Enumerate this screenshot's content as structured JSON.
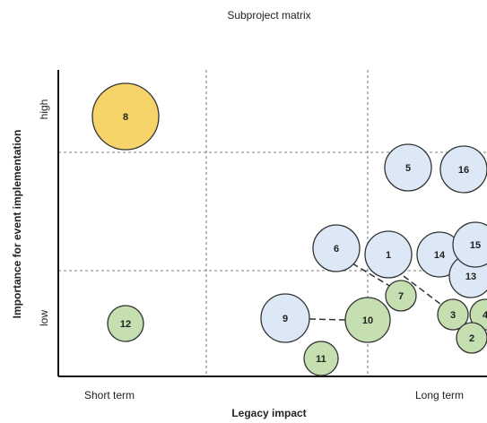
{
  "title": "Subproject matrix",
  "y_axis": {
    "label": "Importance for event implementation",
    "high": "high",
    "low": "low"
  },
  "x_axis": {
    "label": "Legacy impact",
    "short": "Short term",
    "long": "Long term"
  },
  "nodes": [
    {
      "label": "8",
      "color": "#f7d46a"
    },
    {
      "label": "5",
      "color": "#dde8f6"
    },
    {
      "label": "16",
      "color": "#dde8f6"
    },
    {
      "label": "6",
      "color": "#dde8f6"
    },
    {
      "label": "1",
      "color": "#dde8f6"
    },
    {
      "label": "14",
      "color": "#dde8f6"
    },
    {
      "label": "13",
      "color": "#dde8f6"
    },
    {
      "label": "15",
      "color": "#dde8f6"
    },
    {
      "label": "7",
      "color": "#c6dfb1"
    },
    {
      "label": "3",
      "color": "#c6dfb1"
    },
    {
      "label": "4",
      "color": "#c6dfb1"
    },
    {
      "label": "2",
      "color": "#c6dfb1"
    },
    {
      "label": "9",
      "color": "#dde8f6"
    },
    {
      "label": "10",
      "color": "#c6dfb1"
    },
    {
      "label": "11",
      "color": "#c6dfb1"
    },
    {
      "label": "12",
      "color": "#c6dfb1"
    }
  ]
}
